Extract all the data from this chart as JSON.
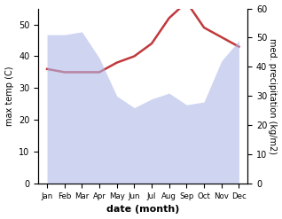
{
  "months": [
    "Jan",
    "Feb",
    "Mar",
    "Apr",
    "May",
    "Jun",
    "Jul",
    "Aug",
    "Sep",
    "Oct",
    "Nov",
    "Dec"
  ],
  "precipitation": [
    51,
    51,
    52,
    43,
    30,
    26,
    29,
    31,
    27,
    28,
    42,
    49
  ],
  "temperature": [
    36,
    35,
    35,
    35,
    38,
    40,
    44,
    52,
    57,
    49,
    46,
    43
  ],
  "temp_color": "#c0393b",
  "precip_fill_color": "#b0b8e8",
  "precip_fill_alpha": 0.6,
  "ylim_left": [
    0,
    55
  ],
  "ylim_right": [
    0,
    60
  ],
  "yticks_left": [
    0,
    10,
    20,
    30,
    40,
    50
  ],
  "yticks_right": [
    0,
    10,
    20,
    30,
    40,
    50,
    60
  ],
  "xlabel": "date (month)",
  "ylabel_left": "max temp (C)",
  "ylabel_right": "med. precipitation (kg/m2)",
  "bg_color": "#ffffff"
}
